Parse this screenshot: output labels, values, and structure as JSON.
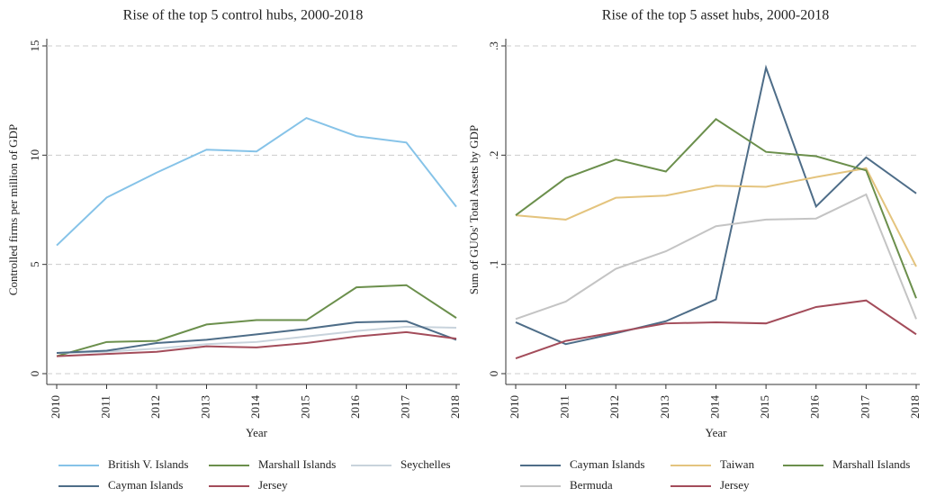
{
  "chart_data": [
    {
      "type": "line",
      "title": "Rise of the top 5 control hubs, 2000-2018",
      "x_label": "Year",
      "y_label": "Controlled firms per million of GDP",
      "x": [
        2010,
        2011,
        2012,
        2013,
        2014,
        2015,
        2016,
        2017,
        2018
      ],
      "xlim": [
        2010,
        2018
      ],
      "xticks": [
        2010,
        2011,
        2012,
        2013,
        2014,
        2015,
        2016,
        2017,
        2018
      ],
      "ylim": [
        0,
        15
      ],
      "yticks": [
        0,
        5,
        10,
        15
      ],
      "grid": true,
      "legend": "bottom",
      "series": [
        {
          "name": "British V. Islands",
          "color": "#86c3e8",
          "values": [
            5.87,
            8.06,
            9.2,
            10.25,
            10.17,
            11.7,
            10.87,
            10.58,
            7.64
          ]
        },
        {
          "name": "Marshall Islands",
          "color": "#6b8f4c",
          "values": [
            0.8,
            1.45,
            1.5,
            2.25,
            2.45,
            2.45,
            3.95,
            4.05,
            2.55
          ]
        },
        {
          "name": "Seychelles",
          "color": "#c8d3dc",
          "values": [
            0.95,
            1.0,
            1.15,
            1.35,
            1.45,
            1.7,
            1.95,
            2.15,
            2.1
          ]
        },
        {
          "name": "Cayman Islands",
          "color": "#4e6d88",
          "values": [
            0.95,
            1.05,
            1.4,
            1.55,
            1.8,
            2.05,
            2.35,
            2.4,
            1.55
          ]
        },
        {
          "name": "Jersey",
          "color": "#a34c5a",
          "values": [
            0.8,
            0.9,
            1.0,
            1.25,
            1.2,
            1.4,
            1.7,
            1.9,
            1.6
          ]
        }
      ]
    },
    {
      "type": "line",
      "title": "Rise of the top 5 asset hubs, 2000-2018",
      "x_label": "Year",
      "y_label": "Sum of GUOs' Total Assets by GDP",
      "x": [
        2010,
        2011,
        2012,
        2013,
        2014,
        2015,
        2016,
        2017,
        2018
      ],
      "xlim": [
        2010,
        2018
      ],
      "xticks": [
        2010,
        2011,
        2012,
        2013,
        2014,
        2015,
        2016,
        2017,
        2018
      ],
      "ylim": [
        0,
        0.3
      ],
      "yticks": [
        0,
        {
          "value": 0.1,
          "label": ".1"
        },
        {
          "value": 0.2,
          "label": ".2"
        },
        {
          "value": 0.3,
          "label": ".3"
        }
      ],
      "grid": true,
      "legend": "bottom",
      "series": [
        {
          "name": "Cayman Islands",
          "color": "#4e6d88",
          "values": [
            0.047,
            0.027,
            0.037,
            0.048,
            0.068,
            0.28,
            0.153,
            0.198,
            0.165
          ]
        },
        {
          "name": "Taiwan",
          "color": "#e4c47e",
          "values": [
            0.145,
            0.141,
            0.161,
            0.163,
            0.172,
            0.171,
            0.18,
            0.188,
            0.098
          ]
        },
        {
          "name": "Marshall Islands",
          "color": "#6b8f4c",
          "values": [
            0.145,
            0.179,
            0.196,
            0.185,
            0.233,
            0.203,
            0.199,
            0.186,
            0.069
          ]
        },
        {
          "name": "Bermuda",
          "color": "#c4c4c4",
          "values": [
            0.05,
            0.066,
            0.096,
            0.112,
            0.135,
            0.141,
            0.142,
            0.164,
            0.05
          ]
        },
        {
          "name": "Jersey",
          "color": "#a34c5a",
          "values": [
            0.014,
            0.03,
            0.038,
            0.046,
            0.047,
            0.046,
            0.061,
            0.067,
            0.036
          ]
        }
      ]
    }
  ]
}
